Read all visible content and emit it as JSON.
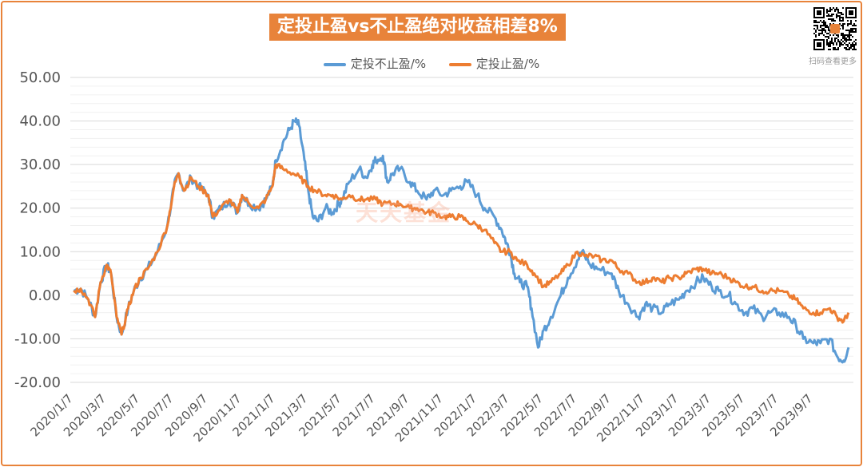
{
  "chart_data": {
    "type": "line",
    "title": "定投止盈vs不止盈绝对收益相差8%",
    "xlabel": "",
    "ylabel": "",
    "ylim": [
      -20,
      50
    ],
    "yticks": [
      "50.00",
      "40.00",
      "30.00",
      "20.00",
      "10.00",
      "0.00",
      "-10.00",
      "-20.00"
    ],
    "ytick_values": [
      50,
      40,
      30,
      20,
      10,
      0,
      -10,
      -20
    ],
    "xticks": [
      "2020/1/7",
      "2020/3/7",
      "2020/5/7",
      "2020/7/7",
      "2020/9/7",
      "2020/11/7",
      "2021/1/7",
      "2021/3/7",
      "2021/5/7",
      "2021/7/7",
      "2021/9/7",
      "2021/11/7",
      "2022/1/7",
      "2022/3/7",
      "2022/5/7",
      "2022/7/7",
      "2022/9/7",
      "2022/11/7",
      "2023/1/7",
      "2023/3/7",
      "2023/5/7",
      "2023/7/7",
      "2023/9/7"
    ],
    "grid": true,
    "legend_position": "top-center",
    "series": [
      {
        "name": "定投不止盈/%",
        "color": "#5b9bd5",
        "points": [
          [
            "2020/1/7",
            1
          ],
          [
            "2020/1/20",
            1.5
          ],
          [
            "2020/2/3",
            -1
          ],
          [
            "2020/2/15",
            -5
          ],
          [
            "2020/2/25",
            3
          ],
          [
            "2020/3/7",
            7
          ],
          [
            "2020/3/15",
            5
          ],
          [
            "2020/3/25",
            -5
          ],
          [
            "2020/4/3",
            -9
          ],
          [
            "2020/4/15",
            -3
          ],
          [
            "2020/4/25",
            1
          ],
          [
            "2020/5/7",
            4
          ],
          [
            "2020/5/20",
            6
          ],
          [
            "2020/6/7",
            10
          ],
          [
            "2020/6/25",
            16
          ],
          [
            "2020/7/7",
            25
          ],
          [
            "2020/7/15",
            28
          ],
          [
            "2020/7/25",
            24
          ],
          [
            "2020/8/7",
            27
          ],
          [
            "2020/8/20",
            25
          ],
          [
            "2020/9/7",
            23
          ],
          [
            "2020/9/15",
            18
          ],
          [
            "2020/9/30",
            20
          ],
          [
            "2020/10/15",
            22
          ],
          [
            "2020/10/30",
            19
          ],
          [
            "2020/11/7",
            23
          ],
          [
            "2020/11/20",
            21
          ],
          [
            "2020/12/7",
            20
          ],
          [
            "2020/12/20",
            22
          ],
          [
            "2021/1/1",
            25
          ],
          [
            "2021/1/7",
            31
          ],
          [
            "2021/1/20",
            35
          ],
          [
            "2021/2/1",
            38
          ],
          [
            "2021/2/10",
            40
          ],
          [
            "2021/2/18",
            39
          ],
          [
            "2021/2/28",
            31
          ],
          [
            "2021/3/7",
            24
          ],
          [
            "2021/3/15",
            18
          ],
          [
            "2021/3/25",
            17
          ],
          [
            "2021/4/7",
            20
          ],
          [
            "2021/4/20",
            19
          ],
          [
            "2021/5/1",
            21
          ],
          [
            "2021/5/7",
            22
          ],
          [
            "2021/5/20",
            26
          ],
          [
            "2021/6/7",
            29
          ],
          [
            "2021/6/20",
            27
          ],
          [
            "2021/7/1",
            30
          ],
          [
            "2021/7/7",
            31
          ],
          [
            "2021/7/20",
            32
          ],
          [
            "2021/7/28",
            26
          ],
          [
            "2021/8/7",
            28
          ],
          [
            "2021/8/20",
            29
          ],
          [
            "2021/9/7",
            26
          ],
          [
            "2021/9/20",
            24
          ],
          [
            "2021/10/7",
            22
          ],
          [
            "2021/10/20",
            24
          ],
          [
            "2021/11/7",
            23
          ],
          [
            "2021/11/20",
            24
          ],
          [
            "2021/12/7",
            25
          ],
          [
            "2021/12/20",
            26
          ],
          [
            "2022/1/7",
            23
          ],
          [
            "2022/1/20",
            20
          ],
          [
            "2022/2/7",
            18
          ],
          [
            "2022/2/20",
            15
          ],
          [
            "2022/3/1",
            12
          ],
          [
            "2022/3/7",
            10
          ],
          [
            "2022/3/15",
            5
          ],
          [
            "2022/3/25",
            3
          ],
          [
            "2022/4/7",
            2
          ],
          [
            "2022/4/15",
            -3
          ],
          [
            "2022/4/27",
            -12
          ],
          [
            "2022/5/7",
            -8
          ],
          [
            "2022/5/20",
            -5
          ],
          [
            "2022/6/7",
            0
          ],
          [
            "2022/6/20",
            4
          ],
          [
            "2022/7/7",
            8
          ],
          [
            "2022/7/15",
            10
          ],
          [
            "2022/7/30",
            7
          ],
          [
            "2022/8/15",
            6
          ],
          [
            "2022/9/7",
            5
          ],
          [
            "2022/9/20",
            1
          ],
          [
            "2022/10/7",
            -2
          ],
          [
            "2022/10/25",
            -5
          ],
          [
            "2022/11/7",
            -2
          ],
          [
            "2022/11/20",
            -3
          ],
          [
            "2022/12/7",
            -4
          ],
          [
            "2022/12/20",
            -2
          ],
          [
            "2023/1/7",
            -1
          ],
          [
            "2023/1/20",
            1
          ],
          [
            "2023/2/7",
            3
          ],
          [
            "2023/2/20",
            4
          ],
          [
            "2023/3/7",
            2
          ],
          [
            "2023/3/20",
            1
          ],
          [
            "2023/4/7",
            0
          ],
          [
            "2023/4/20",
            -2
          ],
          [
            "2023/5/7",
            -4
          ],
          [
            "2023/5/20",
            -3
          ],
          [
            "2023/6/7",
            -5
          ],
          [
            "2023/6/20",
            -4
          ],
          [
            "2023/7/7",
            -4
          ],
          [
            "2023/7/25",
            -5
          ],
          [
            "2023/8/7",
            -7
          ],
          [
            "2023/8/20",
            -10
          ],
          [
            "2023/9/7",
            -11
          ],
          [
            "2023/9/20",
            -11
          ],
          [
            "2023/10/7",
            -10
          ],
          [
            "2023/10/20",
            -14
          ],
          [
            "2023/11/1",
            -15
          ],
          [
            "2023/11/10",
            -12
          ]
        ]
      },
      {
        "name": "定投止盈/%",
        "color": "#ed7d31",
        "points": [
          [
            "2020/1/7",
            1
          ],
          [
            "2020/1/20",
            1.5
          ],
          [
            "2020/2/3",
            -1
          ],
          [
            "2020/2/15",
            -5
          ],
          [
            "2020/2/25",
            3
          ],
          [
            "2020/3/7",
            7
          ],
          [
            "2020/3/15",
            5
          ],
          [
            "2020/3/25",
            -5
          ],
          [
            "2020/4/3",
            -9
          ],
          [
            "2020/4/15",
            -3
          ],
          [
            "2020/4/25",
            1
          ],
          [
            "2020/5/7",
            4
          ],
          [
            "2020/5/20",
            6
          ],
          [
            "2020/6/7",
            10
          ],
          [
            "2020/6/25",
            16
          ],
          [
            "2020/7/7",
            25
          ],
          [
            "2020/7/15",
            28
          ],
          [
            "2020/7/25",
            24
          ],
          [
            "2020/8/7",
            27
          ],
          [
            "2020/8/20",
            25
          ],
          [
            "2020/9/7",
            23
          ],
          [
            "2020/9/15",
            18
          ],
          [
            "2020/9/30",
            20
          ],
          [
            "2020/10/15",
            22
          ],
          [
            "2020/10/30",
            19
          ],
          [
            "2020/11/7",
            23
          ],
          [
            "2020/11/20",
            21
          ],
          [
            "2020/12/7",
            20
          ],
          [
            "2020/12/20",
            22
          ],
          [
            "2021/1/1",
            25
          ],
          [
            "2021/1/7",
            30
          ],
          [
            "2021/1/20",
            29
          ],
          [
            "2021/2/7",
            28
          ],
          [
            "2021/2/20",
            27
          ],
          [
            "2021/3/7",
            25
          ],
          [
            "2021/3/20",
            24
          ],
          [
            "2021/4/7",
            23
          ],
          [
            "2021/4/20",
            23
          ],
          [
            "2021/5/7",
            22
          ],
          [
            "2021/5/20",
            23
          ],
          [
            "2021/6/7",
            22
          ],
          [
            "2021/6/20",
            22
          ],
          [
            "2021/7/7",
            22
          ],
          [
            "2021/7/20",
            21
          ],
          [
            "2021/8/7",
            21
          ],
          [
            "2021/8/20",
            21
          ],
          [
            "2021/9/7",
            20
          ],
          [
            "2021/9/20",
            20
          ],
          [
            "2021/10/7",
            19
          ],
          [
            "2021/10/20",
            19
          ],
          [
            "2021/11/7",
            18
          ],
          [
            "2021/11/20",
            18
          ],
          [
            "2021/12/7",
            18
          ],
          [
            "2021/12/20",
            17
          ],
          [
            "2022/1/7",
            16
          ],
          [
            "2022/1/20",
            15
          ],
          [
            "2022/2/7",
            12
          ],
          [
            "2022/2/20",
            10
          ],
          [
            "2022/3/7",
            10
          ],
          [
            "2022/3/20",
            8
          ],
          [
            "2022/4/7",
            7
          ],
          [
            "2022/4/20",
            5
          ],
          [
            "2022/5/7",
            2
          ],
          [
            "2022/5/20",
            3
          ],
          [
            "2022/6/7",
            5
          ],
          [
            "2022/6/20",
            7
          ],
          [
            "2022/7/7",
            10
          ],
          [
            "2022/7/20",
            9
          ],
          [
            "2022/8/7",
            9
          ],
          [
            "2022/8/20",
            8
          ],
          [
            "2022/9/7",
            8
          ],
          [
            "2022/9/20",
            6
          ],
          [
            "2022/10/7",
            5
          ],
          [
            "2022/10/25",
            3
          ],
          [
            "2022/11/7",
            3
          ],
          [
            "2022/11/20",
            4
          ],
          [
            "2022/12/7",
            3
          ],
          [
            "2022/12/20",
            4
          ],
          [
            "2023/1/7",
            4
          ],
          [
            "2023/1/20",
            5
          ],
          [
            "2023/2/7",
            6
          ],
          [
            "2023/2/20",
            6
          ],
          [
            "2023/3/7",
            5
          ],
          [
            "2023/3/20",
            5
          ],
          [
            "2023/4/7",
            4
          ],
          [
            "2023/4/20",
            3
          ],
          [
            "2023/5/7",
            2
          ],
          [
            "2023/5/20",
            2
          ],
          [
            "2023/6/7",
            1
          ],
          [
            "2023/6/20",
            1
          ],
          [
            "2023/7/7",
            1
          ],
          [
            "2023/7/25",
            0
          ],
          [
            "2023/8/7",
            -1
          ],
          [
            "2023/8/20",
            -3
          ],
          [
            "2023/9/7",
            -4
          ],
          [
            "2023/9/20",
            -4
          ],
          [
            "2023/10/7",
            -3
          ],
          [
            "2023/10/20",
            -5
          ],
          [
            "2023/11/1",
            -6
          ],
          [
            "2023/11/10",
            -4
          ]
        ]
      }
    ]
  },
  "watermark": "天天基金",
  "qr_caption": "扫码查看更多",
  "qr_badge_color": "#e8833a"
}
